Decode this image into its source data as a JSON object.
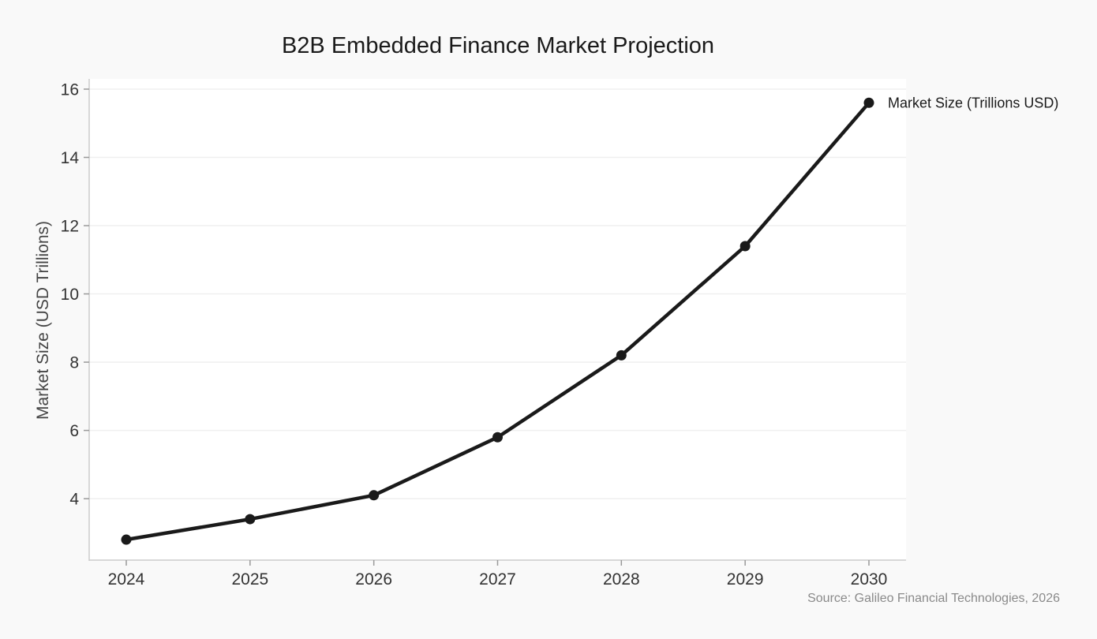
{
  "chart_data": {
    "type": "line",
    "title": "B2B Embedded Finance Market Projection",
    "xlabel": "",
    "ylabel": "Market Size (USD Trillions)",
    "x": [
      2024,
      2025,
      2026,
      2027,
      2028,
      2029,
      2030
    ],
    "x_ticks": [
      "2024",
      "2025",
      "2026",
      "2027",
      "2028",
      "2029",
      "2030"
    ],
    "y_ticks": [
      "4",
      "6",
      "8",
      "10",
      "12",
      "14",
      "16"
    ],
    "ylim": [
      2.2,
      16.3
    ],
    "grid": "horizontal",
    "series": [
      {
        "name": "Market Size (Trillions USD)",
        "values": [
          2.8,
          3.4,
          4.1,
          5.8,
          8.2,
          11.4,
          15.6
        ],
        "color": "#1a1a1a"
      }
    ],
    "legend": "end-of-line label",
    "source": "Source: Galileo Financial Technologies, 2026"
  }
}
